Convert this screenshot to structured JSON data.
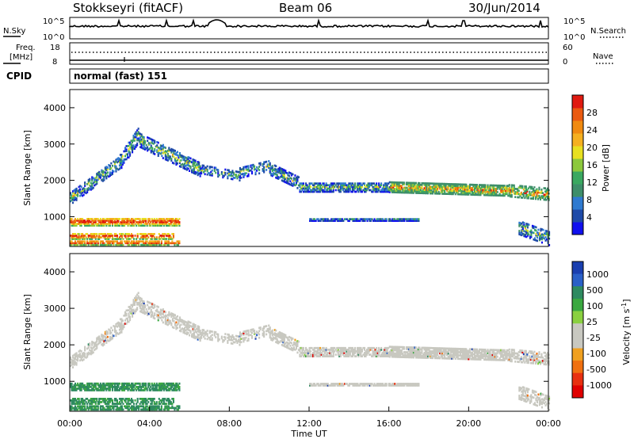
{
  "header": {
    "station": "Stokkseyri (fitACF)",
    "beam": "Beam 06",
    "date": "30/Jun/2014"
  },
  "noise_panel": {
    "left_label": "N.Sky",
    "right_label": "N.Search",
    "left_ticks": [
      "10^5",
      "10^0"
    ],
    "right_ticks": [
      "10^5",
      "10^0"
    ]
  },
  "freq_panel": {
    "left_label_line1": "Freq.",
    "left_label_line2": "[MHz]",
    "right_label": "Nave",
    "left_ticks": [
      "18",
      "8"
    ],
    "right_ticks": [
      "60",
      "0"
    ]
  },
  "cpid": {
    "label": "CPID",
    "value": "normal (fast) 151"
  },
  "chart_data": [
    {
      "type": "heatmap",
      "name": "power",
      "ylabel": "Slant Range [km]",
      "ylim": [
        180,
        4500
      ],
      "xlim": [
        0,
        24
      ],
      "yticks": [
        "1000",
        "2000",
        "3000",
        "4000"
      ],
      "ytick_values": [
        1000,
        2000,
        3000,
        4000
      ],
      "colorbar": {
        "label": "Power [dB]",
        "ticks": [
          "4",
          "8",
          "12",
          "16",
          "20",
          "24",
          "28"
        ],
        "tick_values": [
          4,
          8,
          12,
          16,
          20,
          24,
          28
        ],
        "range": [
          0,
          32
        ],
        "colors": [
          "#1010ee",
          "#1e4aa8",
          "#2f7ad0",
          "#3e8e6a",
          "#3aa860",
          "#8cc83c",
          "#e8e020",
          "#f5b020",
          "#f08a10",
          "#ea5a10",
          "#e01a10"
        ]
      }
    },
    {
      "type": "heatmap",
      "name": "velocity",
      "ylabel": "Slant Range [km]",
      "xlabel": "Time UT",
      "ylim": [
        180,
        4500
      ],
      "xlim": [
        0,
        24
      ],
      "yticks": [
        "1000",
        "2000",
        "3000",
        "4000"
      ],
      "ytick_values": [
        1000,
        2000,
        3000,
        4000
      ],
      "xticks": [
        "00:00",
        "04:00",
        "08:00",
        "12:00",
        "16:00",
        "20:00",
        "00:00"
      ],
      "xtick_values": [
        0,
        4,
        8,
        12,
        16,
        20,
        24
      ],
      "colorbar": {
        "label": "Velocity [m s-1]",
        "ticks": [
          "1000",
          "500",
          "100",
          "25",
          "-25",
          "-100",
          "-500",
          "-1000"
        ],
        "colors": [
          "#1a3fb0",
          "#2a60c8",
          "#2e8a60",
          "#3aa840",
          "#8ad040",
          "#c8c8c0",
          "#c8c8c0",
          "#f0a020",
          "#f07010",
          "#e83010",
          "#e00000"
        ]
      }
    }
  ]
}
